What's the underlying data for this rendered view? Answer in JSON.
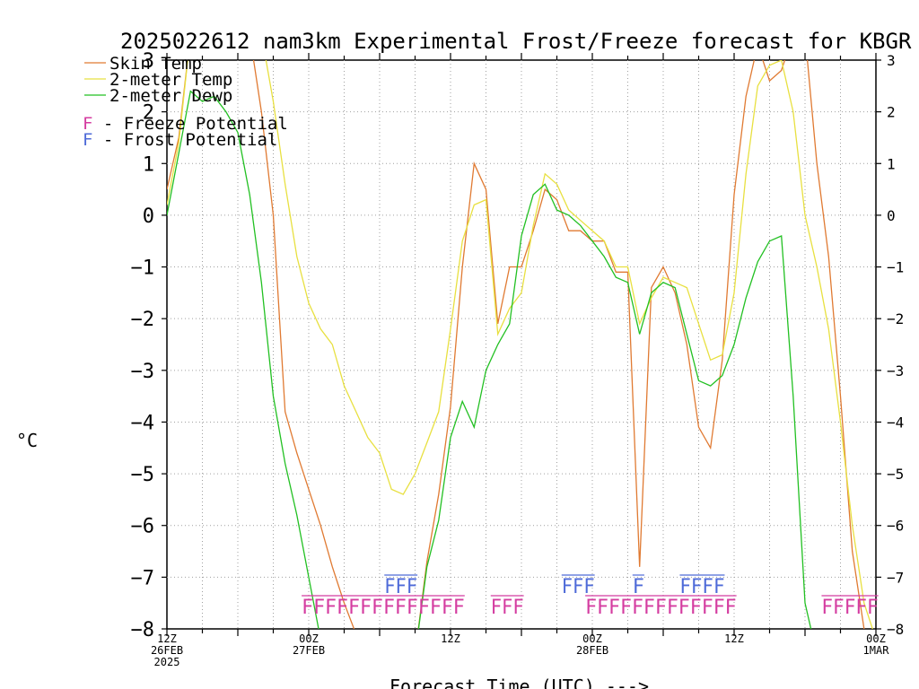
{
  "chart_data": {
    "type": "line",
    "title": "2025022612 nam3km Experimental Frost/Freeze forecast for KBGR",
    "xlabel": "Forecast Time (UTC) --->",
    "ylabel": "°C",
    "ylim": [
      -8,
      3
    ],
    "xlim": [
      0,
      60
    ],
    "yticks": [
      "-8",
      "-7",
      "-6",
      "-5",
      "-4",
      "-3",
      "-2",
      "-1",
      "0",
      "1",
      "2",
      "3"
    ],
    "xticks": [
      {
        "x": 0,
        "line1": "12Z",
        "line2": "26FEB",
        "line3": "2025"
      },
      {
        "x": 12,
        "line1": "00Z",
        "line2": "27FEB",
        "line3": ""
      },
      {
        "x": 24,
        "line1": "12Z",
        "line2": "",
        "line3": ""
      },
      {
        "x": 36,
        "line1": "00Z",
        "line2": "28FEB",
        "line3": ""
      },
      {
        "x": 48,
        "line1": "12Z",
        "line2": "",
        "line3": ""
      },
      {
        "x": 60,
        "line1": "00Z",
        "line2": "1MAR",
        "line3": ""
      }
    ],
    "grid": true,
    "legend": [
      {
        "label": "Skin Temp",
        "color": "#e07a32"
      },
      {
        "label": "2-meter Temp",
        "color": "#e8e040"
      },
      {
        "label": "2-meter Dewp",
        "color": "#22c022"
      }
    ],
    "potential_legend": [
      {
        "symbol": "F",
        "text": " - Freeze Potential",
        "color": "#d43ca0"
      },
      {
        "symbol": "F",
        "text": " - Frost Potential",
        "color": "#4e6ad8"
      }
    ],
    "series": [
      {
        "name": "Skin Temp",
        "color": "#e07a32",
        "x": [
          0,
          1,
          2,
          3,
          4,
          5,
          6,
          7,
          8,
          9,
          10,
          11,
          12,
          13,
          14,
          15,
          16,
          17,
          18,
          19,
          20,
          21,
          22,
          23,
          24,
          25,
          26,
          27,
          28,
          29,
          30,
          31,
          32,
          33,
          34,
          35,
          36,
          37,
          38,
          39,
          40,
          41,
          42,
          43,
          44,
          45,
          46,
          47,
          48,
          49,
          50,
          51,
          52,
          53,
          54,
          55,
          56,
          57,
          58,
          59,
          60
        ],
        "values": [
          0.5,
          1.5,
          3.5,
          3.5,
          3.5,
          3.5,
          3.5,
          3.5,
          2.0,
          0.0,
          -3.8,
          -4.6,
          -5.3,
          -6.0,
          -6.8,
          -7.5,
          -8.1,
          -8.5,
          -8.5,
          -8.5,
          -8.5,
          -8.5,
          -6.7,
          -5.4,
          -3.7,
          -1.0,
          1.0,
          0.5,
          -2.1,
          -1.0,
          -1.0,
          -0.3,
          0.5,
          0.3,
          -0.3,
          -0.3,
          -0.5,
          -0.5,
          -1.1,
          -1.1,
          -6.8,
          -1.4,
          -1.0,
          -1.5,
          -2.5,
          -4.1,
          -4.5,
          -2.8,
          0.4,
          2.3,
          3.3,
          2.6,
          2.8,
          3.5,
          3.5,
          1.0,
          -0.8,
          -3.5,
          -6.5,
          -8.0,
          -8.3
        ]
      },
      {
        "name": "2-meter Temp",
        "color": "#e8e040",
        "x": [
          0,
          1,
          2,
          3,
          4,
          5,
          6,
          7,
          8,
          9,
          10,
          11,
          12,
          13,
          14,
          15,
          16,
          17,
          18,
          19,
          20,
          21,
          22,
          23,
          24,
          25,
          26,
          27,
          28,
          29,
          30,
          31,
          32,
          33,
          34,
          35,
          36,
          37,
          38,
          39,
          40,
          41,
          42,
          43,
          44,
          45,
          46,
          47,
          48,
          49,
          50,
          51,
          52,
          53,
          54,
          55,
          56,
          57,
          58,
          59,
          60
        ],
        "values": [
          0.2,
          1.4,
          3.5,
          3.5,
          3.5,
          3.5,
          3.5,
          3.5,
          3.5,
          2.2,
          0.6,
          -0.8,
          -1.7,
          -2.2,
          -2.5,
          -3.3,
          -3.8,
          -4.3,
          -4.6,
          -5.3,
          -5.4,
          -5.0,
          -4.4,
          -3.8,
          -2.2,
          -0.5,
          0.2,
          0.3,
          -2.3,
          -1.8,
          -1.5,
          -0.2,
          0.8,
          0.6,
          0.1,
          -0.1,
          -0.3,
          -0.5,
          -1.0,
          -1.0,
          -2.1,
          -1.6,
          -1.2,
          -1.3,
          -1.4,
          -2.1,
          -2.8,
          -2.7,
          -1.5,
          0.8,
          2.5,
          2.9,
          3.0,
          2.0,
          0.0,
          -1.0,
          -2.2,
          -4.0,
          -6.0,
          -7.5,
          -8.2
        ]
      },
      {
        "name": "2-meter Dewp",
        "color": "#22c022",
        "x": [
          0,
          1,
          2,
          3,
          4,
          5,
          6,
          7,
          8,
          9,
          10,
          11,
          12,
          13,
          14,
          15,
          16,
          17,
          18,
          19,
          20,
          21,
          22,
          23,
          24,
          25,
          26,
          27,
          28,
          29,
          30,
          31,
          32,
          33,
          34,
          35,
          36,
          37,
          38,
          39,
          40,
          41,
          42,
          43,
          44,
          45,
          46,
          47,
          48,
          49,
          50,
          51,
          52,
          53,
          54,
          55,
          56,
          57,
          58,
          59,
          60
        ],
        "values": [
          0.0,
          1.2,
          2.4,
          2.2,
          2.3,
          2.0,
          1.6,
          0.4,
          -1.3,
          -3.5,
          -4.8,
          -5.8,
          -7.0,
          -8.2,
          -8.5,
          -8.5,
          -8.5,
          -8.5,
          -8.5,
          -8.5,
          -8.5,
          -8.5,
          -6.8,
          -5.9,
          -4.3,
          -3.6,
          -4.1,
          -3.0,
          -2.5,
          -2.1,
          -0.4,
          0.4,
          0.6,
          0.1,
          0.0,
          -0.2,
          -0.5,
          -0.8,
          -1.2,
          -1.3,
          -2.3,
          -1.5,
          -1.3,
          -1.4,
          -2.3,
          -3.2,
          -3.3,
          -3.1,
          -2.5,
          -1.6,
          -0.9,
          -0.5,
          -0.4,
          -3.5,
          -7.5,
          -8.5,
          -8.5,
          -8.5,
          -8.5,
          -8.5,
          -8.5
        ]
      }
    ],
    "frost_marks": [
      {
        "x0": 18.4,
        "x1": 21.2,
        "text": "FFF"
      },
      {
        "x0": 33.4,
        "x1": 36.2,
        "text": "FFF"
      },
      {
        "x0": 39.4,
        "x1": 40.4,
        "text": "F"
      },
      {
        "x0": 43.4,
        "x1": 47.2,
        "text": "FFFF"
      }
    ],
    "freeze_marks": [
      {
        "x0": 11.4,
        "x1": 25.2,
        "text": "FFFFFFFFFFFFFF"
      },
      {
        "x0": 27.4,
        "x1": 30.2,
        "text": "FFF"
      },
      {
        "x0": 35.4,
        "x1": 48.2,
        "text": "FFFFFFFFFFFFF"
      },
      {
        "x0": 55.4,
        "x1": 60.2,
        "text": "FFFFF"
      }
    ]
  }
}
